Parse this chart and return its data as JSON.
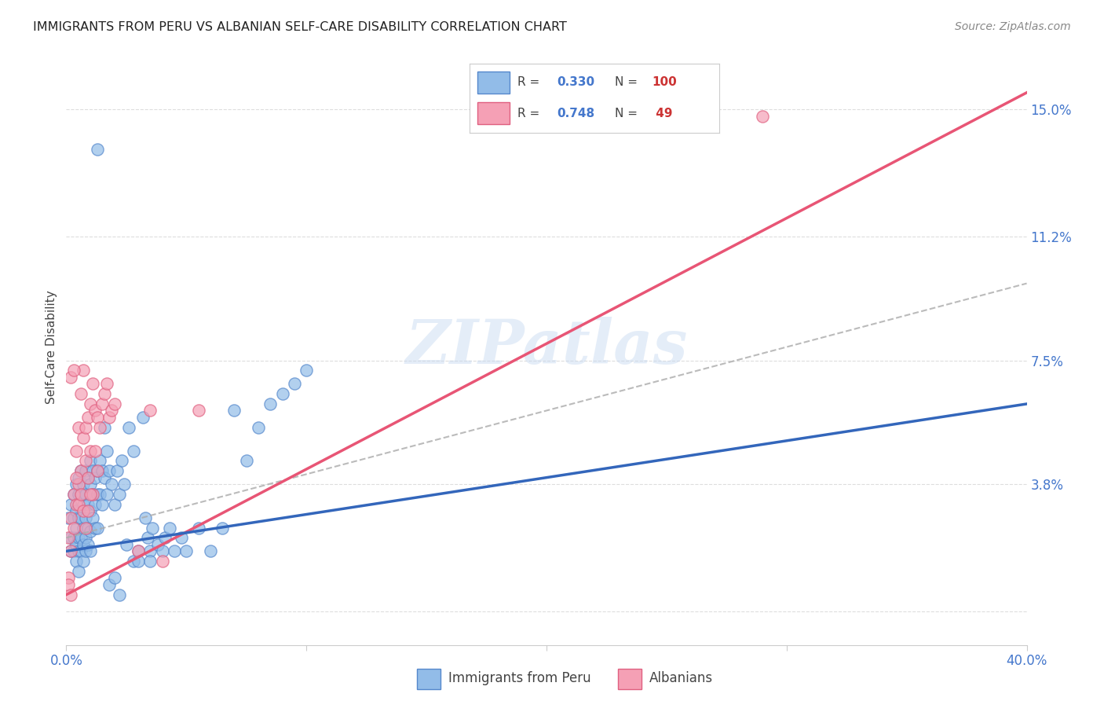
{
  "title": "IMMIGRANTS FROM PERU VS ALBANIAN SELF-CARE DISABILITY CORRELATION CHART",
  "source": "Source: ZipAtlas.com",
  "ylabel": "Self-Care Disability",
  "ytick_labels": [
    "15.0%",
    "11.2%",
    "7.5%",
    "3.8%"
  ],
  "ytick_values": [
    0.15,
    0.112,
    0.075,
    0.038
  ],
  "xlim": [
    0.0,
    0.4
  ],
  "ylim": [
    -0.01,
    0.168
  ],
  "peru_color": "#92bce8",
  "albanian_color": "#f5a0b5",
  "peru_edge_color": "#5588cc",
  "albanian_edge_color": "#e06080",
  "watermark_text": "ZIPatlas",
  "peru_R": "0.330",
  "peru_N": "100",
  "albanian_R": "0.748",
  "albanian_N": " 49",
  "peru_scatter": [
    [
      0.001,
      0.028
    ],
    [
      0.002,
      0.032
    ],
    [
      0.002,
      0.022
    ],
    [
      0.002,
      0.018
    ],
    [
      0.003,
      0.035
    ],
    [
      0.003,
      0.028
    ],
    [
      0.003,
      0.022
    ],
    [
      0.003,
      0.018
    ],
    [
      0.004,
      0.038
    ],
    [
      0.004,
      0.03
    ],
    [
      0.004,
      0.025
    ],
    [
      0.004,
      0.02
    ],
    [
      0.004,
      0.015
    ],
    [
      0.005,
      0.04
    ],
    [
      0.005,
      0.035
    ],
    [
      0.005,
      0.028
    ],
    [
      0.005,
      0.022
    ],
    [
      0.005,
      0.018
    ],
    [
      0.005,
      0.012
    ],
    [
      0.006,
      0.042
    ],
    [
      0.006,
      0.035
    ],
    [
      0.006,
      0.028
    ],
    [
      0.006,
      0.022
    ],
    [
      0.006,
      0.018
    ],
    [
      0.007,
      0.038
    ],
    [
      0.007,
      0.032
    ],
    [
      0.007,
      0.025
    ],
    [
      0.007,
      0.02
    ],
    [
      0.007,
      0.015
    ],
    [
      0.008,
      0.042
    ],
    [
      0.008,
      0.035
    ],
    [
      0.008,
      0.028
    ],
    [
      0.008,
      0.022
    ],
    [
      0.008,
      0.018
    ],
    [
      0.009,
      0.04
    ],
    [
      0.009,
      0.032
    ],
    [
      0.009,
      0.025
    ],
    [
      0.009,
      0.02
    ],
    [
      0.01,
      0.045
    ],
    [
      0.01,
      0.038
    ],
    [
      0.01,
      0.03
    ],
    [
      0.01,
      0.024
    ],
    [
      0.01,
      0.018
    ],
    [
      0.011,
      0.042
    ],
    [
      0.011,
      0.035
    ],
    [
      0.011,
      0.028
    ],
    [
      0.012,
      0.04
    ],
    [
      0.012,
      0.032
    ],
    [
      0.012,
      0.025
    ],
    [
      0.013,
      0.138
    ],
    [
      0.013,
      0.042
    ],
    [
      0.013,
      0.035
    ],
    [
      0.013,
      0.025
    ],
    [
      0.014,
      0.045
    ],
    [
      0.014,
      0.035
    ],
    [
      0.015,
      0.042
    ],
    [
      0.015,
      0.032
    ],
    [
      0.016,
      0.055
    ],
    [
      0.016,
      0.04
    ],
    [
      0.017,
      0.048
    ],
    [
      0.017,
      0.035
    ],
    [
      0.018,
      0.042
    ],
    [
      0.018,
      0.008
    ],
    [
      0.019,
      0.038
    ],
    [
      0.02,
      0.032
    ],
    [
      0.02,
      0.01
    ],
    [
      0.021,
      0.042
    ],
    [
      0.022,
      0.035
    ],
    [
      0.022,
      0.005
    ],
    [
      0.023,
      0.045
    ],
    [
      0.024,
      0.038
    ],
    [
      0.025,
      0.02
    ],
    [
      0.026,
      0.055
    ],
    [
      0.028,
      0.048
    ],
    [
      0.03,
      0.018
    ],
    [
      0.032,
      0.058
    ],
    [
      0.033,
      0.028
    ],
    [
      0.034,
      0.022
    ],
    [
      0.035,
      0.018
    ],
    [
      0.036,
      0.025
    ],
    [
      0.038,
      0.02
    ],
    [
      0.04,
      0.018
    ],
    [
      0.041,
      0.022
    ],
    [
      0.043,
      0.025
    ],
    [
      0.045,
      0.018
    ],
    [
      0.048,
      0.022
    ],
    [
      0.05,
      0.018
    ],
    [
      0.055,
      0.025
    ],
    [
      0.06,
      0.018
    ],
    [
      0.065,
      0.025
    ],
    [
      0.07,
      0.06
    ],
    [
      0.075,
      0.045
    ],
    [
      0.08,
      0.055
    ],
    [
      0.085,
      0.062
    ],
    [
      0.09,
      0.065
    ],
    [
      0.095,
      0.068
    ],
    [
      0.1,
      0.072
    ],
    [
      0.028,
      0.015
    ],
    [
      0.03,
      0.015
    ],
    [
      0.035,
      0.015
    ]
  ],
  "albanian_scatter": [
    [
      0.001,
      0.022
    ],
    [
      0.001,
      0.01
    ],
    [
      0.002,
      0.028
    ],
    [
      0.002,
      0.018
    ],
    [
      0.003,
      0.035
    ],
    [
      0.003,
      0.025
    ],
    [
      0.004,
      0.048
    ],
    [
      0.004,
      0.032
    ],
    [
      0.005,
      0.055
    ],
    [
      0.005,
      0.038
    ],
    [
      0.006,
      0.065
    ],
    [
      0.006,
      0.042
    ],
    [
      0.007,
      0.072
    ],
    [
      0.007,
      0.052
    ],
    [
      0.008,
      0.055
    ],
    [
      0.008,
      0.045
    ],
    [
      0.009,
      0.058
    ],
    [
      0.009,
      0.04
    ],
    [
      0.01,
      0.062
    ],
    [
      0.01,
      0.048
    ],
    [
      0.011,
      0.068
    ],
    [
      0.011,
      0.035
    ],
    [
      0.012,
      0.06
    ],
    [
      0.012,
      0.048
    ],
    [
      0.013,
      0.058
    ],
    [
      0.013,
      0.042
    ],
    [
      0.014,
      0.055
    ],
    [
      0.015,
      0.062
    ],
    [
      0.016,
      0.065
    ],
    [
      0.017,
      0.068
    ],
    [
      0.018,
      0.058
    ],
    [
      0.019,
      0.06
    ],
    [
      0.02,
      0.062
    ],
    [
      0.002,
      0.07
    ],
    [
      0.003,
      0.072
    ],
    [
      0.004,
      0.04
    ],
    [
      0.005,
      0.032
    ],
    [
      0.006,
      0.035
    ],
    [
      0.007,
      0.03
    ],
    [
      0.008,
      0.025
    ],
    [
      0.009,
      0.03
    ],
    [
      0.01,
      0.035
    ],
    [
      0.035,
      0.06
    ],
    [
      0.03,
      0.018
    ],
    [
      0.04,
      0.015
    ],
    [
      0.001,
      0.008
    ],
    [
      0.002,
      0.005
    ],
    [
      0.29,
      0.148
    ],
    [
      0.055,
      0.06
    ]
  ],
  "peru_line_x": [
    0.0,
    0.4
  ],
  "peru_line_y": [
    0.018,
    0.062
  ],
  "albanian_line_x": [
    0.0,
    0.4
  ],
  "albanian_line_y": [
    0.005,
    0.155
  ],
  "dashed_line_x": [
    0.0,
    0.4
  ],
  "dashed_line_y": [
    0.022,
    0.098
  ],
  "grid_yticks": [
    0.0,
    0.038,
    0.075,
    0.112,
    0.15
  ],
  "grid_color": "#dddddd",
  "grid_linestyle": "--"
}
